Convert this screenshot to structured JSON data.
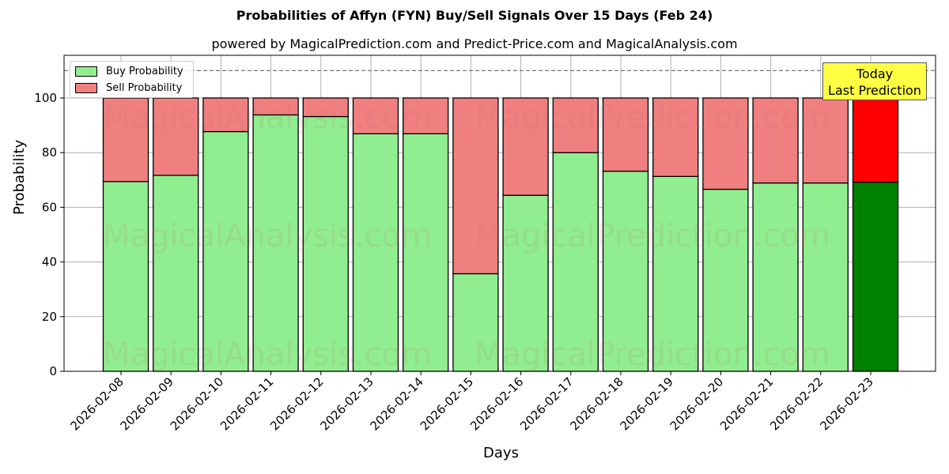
{
  "chart_data": {
    "type": "bar",
    "stacked": true,
    "title": "Probabilities of Affyn (FYN) Buy/Sell Signals Over 15 Days (Feb 24)",
    "subtitle": "powered by MagicalPrediction.com and Predict-Price.com and MagicalAnalysis.com",
    "xlabel": "Days",
    "ylabel": "Probability",
    "ylim": [
      0,
      115
    ],
    "yticks": [
      0,
      20,
      40,
      60,
      80,
      100
    ],
    "reference_line": 110,
    "grid": true,
    "legend_position": "upper left",
    "categories": [
      "2026-02-08",
      "2026-02-09",
      "2026-02-10",
      "2026-02-11",
      "2026-02-12",
      "2026-02-13",
      "2026-02-14",
      "2026-02-15",
      "2026-02-16",
      "2026-02-17",
      "2026-02-18",
      "2026-02-19",
      "2026-02-20",
      "2026-02-21",
      "2026-02-22",
      "2026-02-23"
    ],
    "series": [
      {
        "name": "Buy Probability",
        "color": "#90ee90",
        "values": [
          69.4,
          71.7,
          87.7,
          93.8,
          93.2,
          86.9,
          86.9,
          35.7,
          64.4,
          80.0,
          73.2,
          71.3,
          66.6,
          68.9,
          68.9,
          69.2
        ]
      },
      {
        "name": "Sell Probability",
        "color": "#f08080",
        "values": [
          30.6,
          28.3,
          12.3,
          6.2,
          6.8,
          13.1,
          13.1,
          64.3,
          35.6,
          20.0,
          26.8,
          28.7,
          33.4,
          31.1,
          31.1,
          30.8
        ]
      }
    ],
    "highlight": {
      "index": 15,
      "buy_color": "#008000",
      "sell_color": "#ff0000"
    },
    "annotation": "Today\nLast Prediction",
    "watermarks": [
      "MagicalAnalysis.com",
      "MagicalPrediction.com"
    ]
  },
  "legend": {
    "buy": "Buy Probability",
    "sell": "Sell Probability"
  },
  "annotation": {
    "line1": "Today",
    "line2": "Last Prediction"
  }
}
